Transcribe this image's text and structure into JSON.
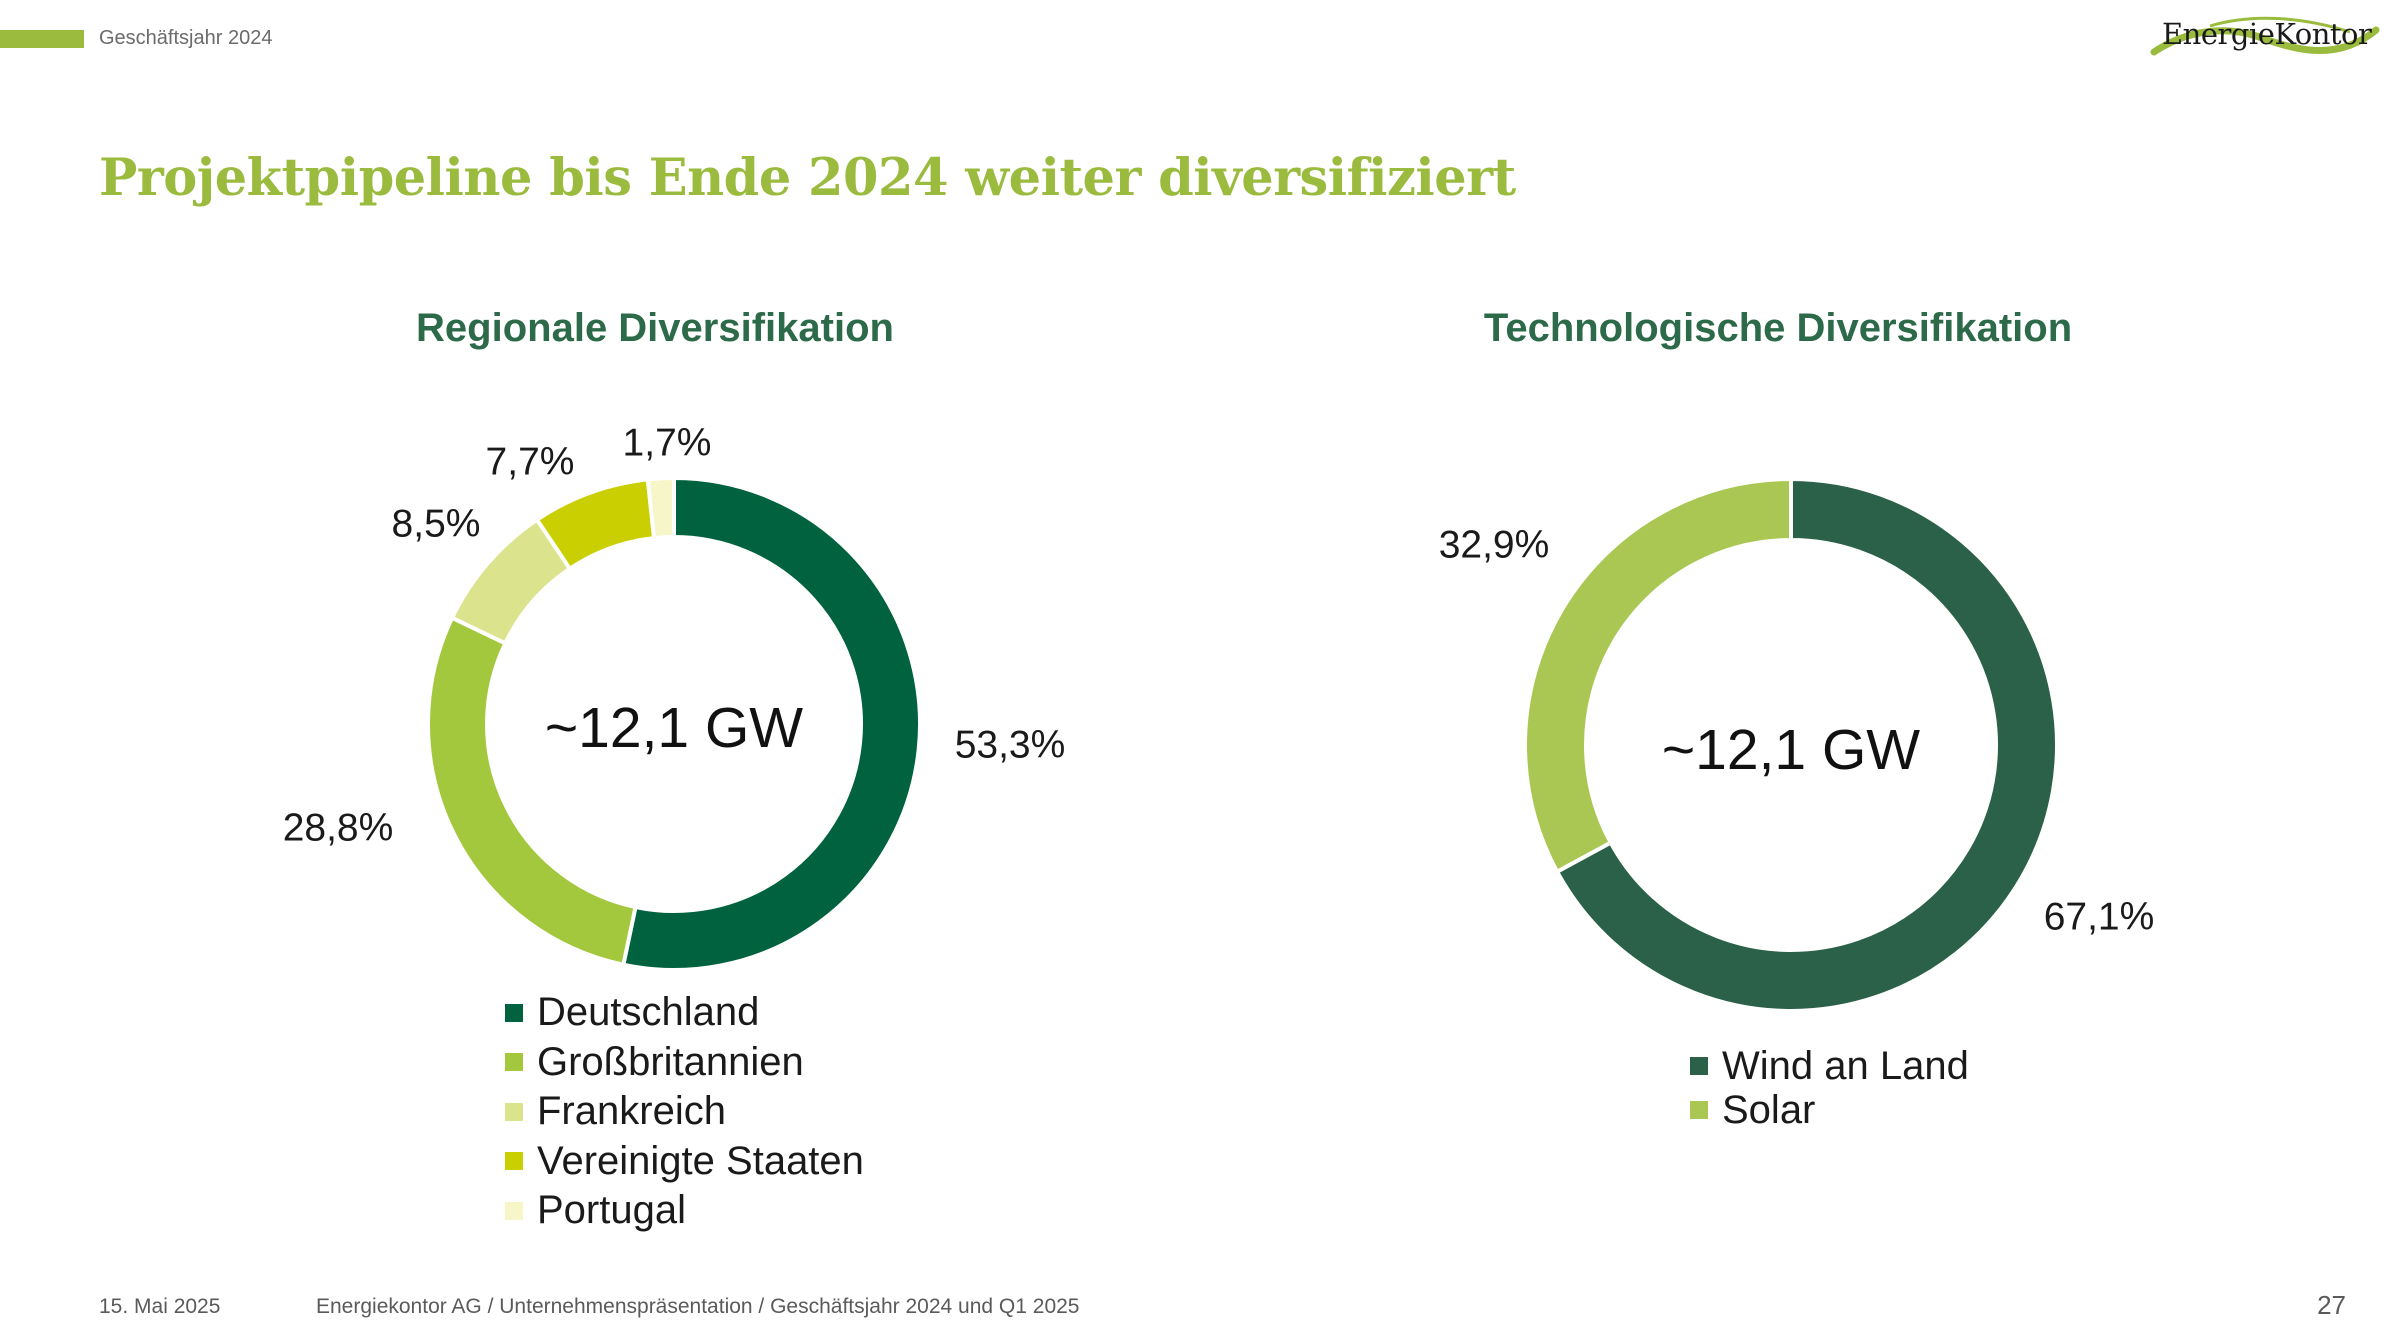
{
  "header": {
    "fiscal_year": "Geschäftsjahr 2024",
    "logo_text": "EnergieKontor"
  },
  "slide": {
    "title": "Projektpipeline bis Ende 2024 weiter diversifiziert"
  },
  "colors": {
    "accent_green": "#9bbb3f",
    "chart_title_green": "#2d6a4a",
    "deutschland": "#00623f",
    "grossbritannien": "#a3c83e",
    "frankreich": "#dbe48c",
    "vereinigte_staaten": "#c9cf00",
    "portugal": "#f6f6c8",
    "wind": "#2b6148",
    "solar": "#a9c752"
  },
  "chart_data": [
    {
      "type": "pie",
      "variant": "donut",
      "title": "Regionale Diversifikation",
      "center_label": "~12,1 GW",
      "categories": [
        "Deutschland",
        "Großbritannien",
        "Frankreich",
        "Vereinigte Staaten",
        "Portugal"
      ],
      "values": [
        53.3,
        28.8,
        8.5,
        7.7,
        1.7
      ],
      "data_labels": [
        "53,3%",
        "28,8%",
        "8,5%",
        "7,7%",
        "1,7%"
      ],
      "colors": [
        "#00623f",
        "#a3c83e",
        "#dbe48c",
        "#c9cf00",
        "#f6f6c8"
      ],
      "legend_position": "bottom"
    },
    {
      "type": "pie",
      "variant": "donut",
      "title": "Technologische Diversifikation",
      "center_label": "~12,1 GW",
      "categories": [
        "Wind an Land",
        "Solar"
      ],
      "values": [
        67.1,
        32.9
      ],
      "data_labels": [
        "67,1%",
        "32,9%"
      ],
      "colors": [
        "#2b6148",
        "#a9c752"
      ],
      "legend_position": "bottom"
    }
  ],
  "footer": {
    "date": "15. Mai 2025",
    "source": "Energiekontor AG / Unternehmenspräsentation / Geschäftsjahr 2024 und Q1 2025",
    "page": "27"
  }
}
